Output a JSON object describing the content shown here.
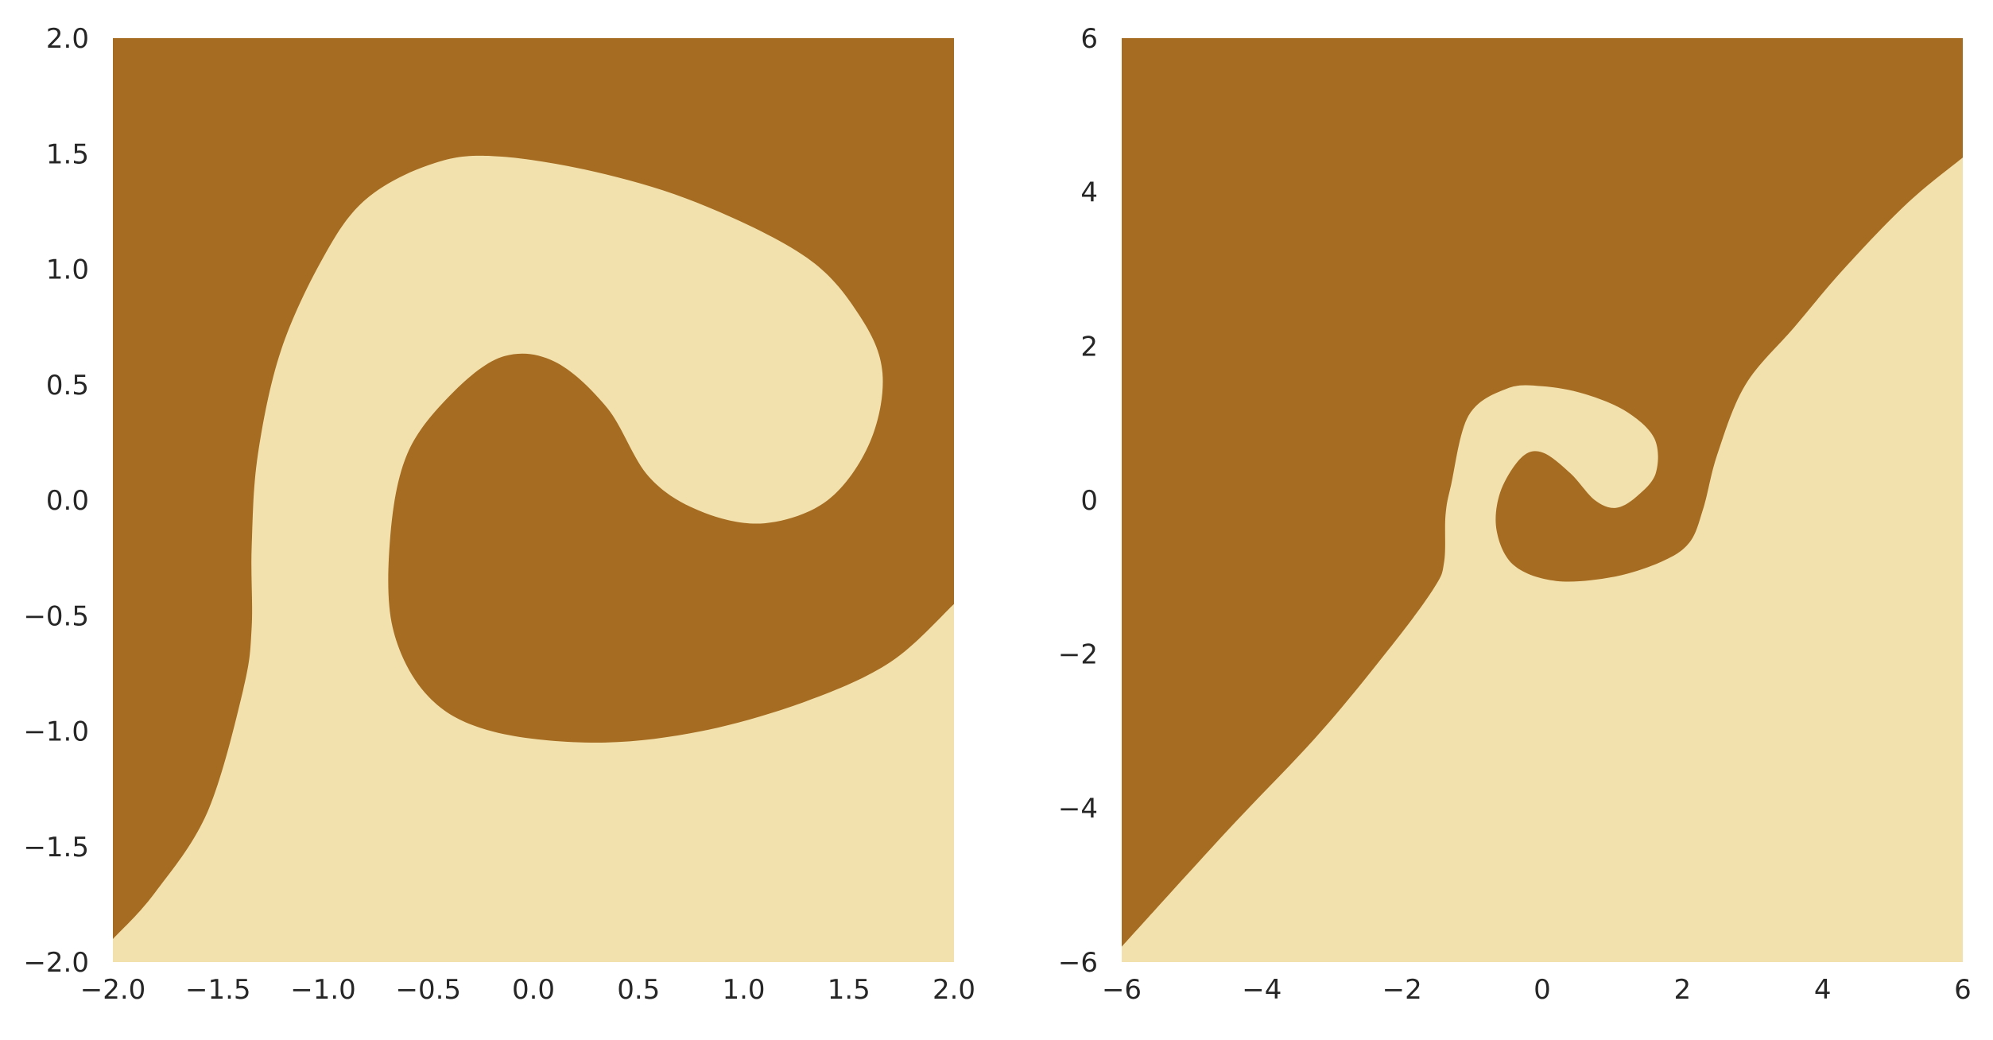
{
  "chart_data": [
    {
      "type": "heatmap",
      "title": "",
      "xlabel": "",
      "ylabel": "",
      "xlim": [
        -2,
        2
      ],
      "ylim": [
        -2,
        2
      ],
      "x_ticks": [
        "−2.0",
        "−1.5",
        "−1.0",
        "−0.5",
        "0.0",
        "0.5",
        "1.0",
        "1.5",
        "2.0"
      ],
      "x_tick_values": [
        -2,
        -1.5,
        -1,
        -0.5,
        0,
        0.5,
        1,
        1.5,
        2
      ],
      "y_ticks": [
        "−2.0",
        "−1.5",
        "−1.0",
        "−0.5",
        "0.0",
        "0.5",
        "1.0",
        "1.5",
        "2.0"
      ],
      "y_tick_values": [
        -2,
        -1.5,
        -1,
        -0.5,
        0,
        0.5,
        1,
        1.5,
        2
      ],
      "grid": false,
      "classes": [
        {
          "label": "",
          "color": "#a56c22"
        },
        {
          "label": "",
          "color": "#f3e1ad"
        }
      ],
      "boundary": [
        [
          -2.0,
          -1.9
        ],
        [
          -1.8,
          -1.7
        ],
        [
          -1.55,
          -1.35
        ],
        [
          -1.38,
          -0.82
        ],
        [
          -1.34,
          -0.55
        ],
        [
          -1.34,
          -0.2
        ],
        [
          -1.31,
          0.2
        ],
        [
          -1.2,
          0.65
        ],
        [
          -1.0,
          1.05
        ],
        [
          -0.8,
          1.3
        ],
        [
          -0.5,
          1.45
        ],
        [
          -0.2,
          1.49
        ],
        [
          0.3,
          1.42
        ],
        [
          0.8,
          1.28
        ],
        [
          1.3,
          1.05
        ],
        [
          1.55,
          0.8
        ],
        [
          1.66,
          0.55
        ],
        [
          1.6,
          0.25
        ],
        [
          1.4,
          0.0
        ],
        [
          1.1,
          -0.1
        ],
        [
          0.8,
          -0.05
        ],
        [
          0.55,
          0.1
        ],
        [
          0.35,
          0.4
        ],
        [
          0.1,
          0.6
        ],
        [
          -0.15,
          0.62
        ],
        [
          -0.4,
          0.45
        ],
        [
          -0.6,
          0.2
        ],
        [
          -0.68,
          -0.15
        ],
        [
          -0.67,
          -0.55
        ],
        [
          -0.5,
          -0.85
        ],
        [
          -0.2,
          -1.0
        ],
        [
          0.3,
          -1.05
        ],
        [
          0.8,
          -1.0
        ],
        [
          1.3,
          -0.87
        ],
        [
          1.7,
          -0.7
        ],
        [
          2.0,
          -0.45
        ]
      ]
    },
    {
      "type": "heatmap",
      "title": "",
      "xlabel": "",
      "ylabel": "",
      "xlim": [
        -6,
        6
      ],
      "ylim": [
        -6,
        6
      ],
      "x_ticks": [
        "−6",
        "−4",
        "−2",
        "0",
        "2",
        "4",
        "6"
      ],
      "x_tick_values": [
        -6,
        -4,
        -2,
        0,
        2,
        4,
        6
      ],
      "y_ticks": [
        "−6",
        "−4",
        "−2",
        "0",
        "2",
        "4",
        "6"
      ],
      "y_tick_values": [
        -6,
        -4,
        -2,
        0,
        2,
        4,
        6
      ],
      "grid": false,
      "classes": [
        {
          "label": "",
          "color": "#a56c22"
        },
        {
          "label": "",
          "color": "#f3e1ad"
        }
      ],
      "boundary": [
        [
          -6.0,
          -5.8
        ],
        [
          -4.5,
          -4.3
        ],
        [
          -3.2,
          -3.05
        ],
        [
          -2.2,
          -1.95
        ],
        [
          -1.55,
          -1.15
        ],
        [
          -1.4,
          -0.8
        ],
        [
          -1.38,
          -0.2
        ],
        [
          -1.3,
          0.2
        ],
        [
          -1.05,
          1.1
        ],
        [
          -0.5,
          1.45
        ],
        [
          0.0,
          1.48
        ],
        [
          0.6,
          1.38
        ],
        [
          1.2,
          1.15
        ],
        [
          1.6,
          0.8
        ],
        [
          1.62,
          0.35
        ],
        [
          1.35,
          0.05
        ],
        [
          1.05,
          -0.1
        ],
        [
          0.75,
          0.0
        ],
        [
          0.4,
          0.35
        ],
        [
          0.0,
          0.62
        ],
        [
          -0.3,
          0.55
        ],
        [
          -0.6,
          0.1
        ],
        [
          -0.65,
          -0.4
        ],
        [
          -0.4,
          -0.85
        ],
        [
          0.2,
          -1.05
        ],
        [
          1.0,
          -1.0
        ],
        [
          1.7,
          -0.8
        ],
        [
          2.1,
          -0.55
        ],
        [
          2.3,
          -0.1
        ],
        [
          2.5,
          0.6
        ],
        [
          2.9,
          1.5
        ],
        [
          3.6,
          2.25
        ],
        [
          4.3,
          3.0
        ],
        [
          5.2,
          3.85
        ],
        [
          6.0,
          4.45
        ]
      ]
    }
  ]
}
